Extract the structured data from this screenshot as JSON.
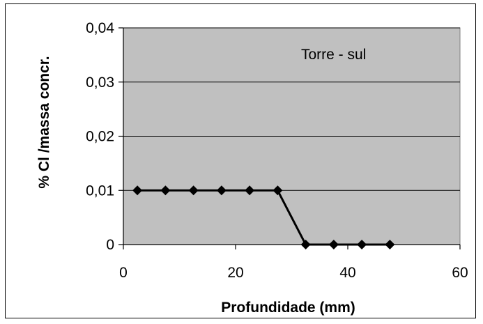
{
  "chart_data": {
    "type": "line",
    "title": "",
    "annotation": "Torre - sul",
    "xlabel": "Profundidade (mm)",
    "ylabel": "% Cl /massa concr.",
    "xlim": [
      0,
      60
    ],
    "ylim": [
      0,
      0.04
    ],
    "x_ticks": [
      0,
      20,
      40,
      60
    ],
    "x_tick_labels": [
      "0",
      "20",
      "40",
      "60"
    ],
    "y_ticks": [
      0,
      0.01,
      0.02,
      0.03,
      0.04
    ],
    "y_tick_labels": [
      "0",
      "0,01",
      "0,02",
      "0,03",
      "0,04"
    ],
    "grid": "horizontal",
    "plot_background": "#c0c0c0",
    "series": [
      {
        "color": "#000000",
        "marker": "diamond",
        "x": [
          2.5,
          7.5,
          12.5,
          17.5,
          22.5,
          27.5,
          32.5,
          37.5,
          42.5,
          47.5
        ],
        "y": [
          0.01,
          0.01,
          0.01,
          0.01,
          0.01,
          0.01,
          0,
          0,
          0,
          0
        ]
      }
    ]
  }
}
